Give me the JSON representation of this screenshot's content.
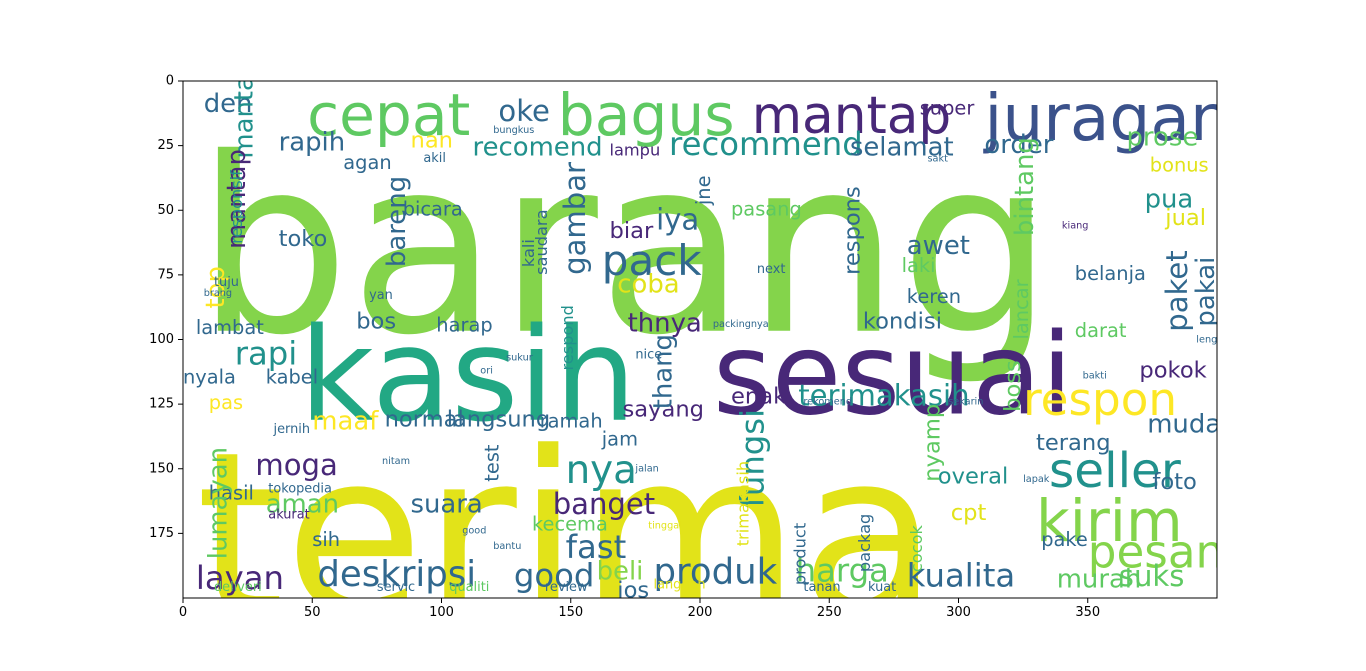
{
  "chart_data": {
    "type": "wordcloud",
    "title": "",
    "xlabel": "",
    "ylabel": "",
    "xlim": [
      0,
      400
    ],
    "ylim": [
      200,
      0
    ],
    "x_ticks": [
      "0",
      "50",
      "100",
      "150",
      "200",
      "250",
      "300",
      "350"
    ],
    "y_ticks": [
      "0",
      "25",
      "50",
      "75",
      "100",
      "125",
      "150",
      "175"
    ],
    "words": [
      {
        "text": "barang",
        "x": 5,
        "y": 10,
        "h": 75,
        "color": "#84d44b",
        "rot": 0
      },
      {
        "text": "terima",
        "x": 5,
        "y": 125,
        "h": 70,
        "color": "#e2e319",
        "rot": 0
      },
      {
        "text": "kasih",
        "x": 45,
        "y": 85,
        "h": 40,
        "color": "#22a884",
        "rot": 0
      },
      {
        "text": "sesuai",
        "x": 205,
        "y": 88,
        "h": 35,
        "color": "#482878",
        "rot": 0
      },
      {
        "text": "cepat",
        "x": 48,
        "y": 0,
        "h": 18,
        "color": "#5ec962",
        "rot": 0
      },
      {
        "text": "bagus",
        "x": 145,
        "y": 0,
        "h": 18,
        "color": "#5ec962",
        "rot": 0
      },
      {
        "text": "juragan",
        "x": 310,
        "y": 0,
        "h": 20,
        "color": "#3b528b",
        "rot": 0
      },
      {
        "text": "mantap",
        "x": 220,
        "y": 2,
        "h": 16,
        "color": "#482878",
        "rot": 0
      },
      {
        "text": "oke",
        "x": 122,
        "y": 5,
        "h": 9,
        "color": "#31688e",
        "rot": 0
      },
      {
        "text": "deh",
        "x": 8,
        "y": 3,
        "h": 8,
        "color": "#31688e",
        "rot": 0
      },
      {
        "text": "recommend",
        "x": 188,
        "y": 17,
        "h": 10,
        "color": "#21918c",
        "rot": 0
      },
      {
        "text": "recomend",
        "x": 112,
        "y": 20,
        "h": 8,
        "color": "#21918c",
        "rot": 0
      },
      {
        "text": "rapih",
        "x": 37,
        "y": 18,
        "h": 8,
        "color": "#31688e",
        "rot": 0
      },
      {
        "text": "nan",
        "x": 88,
        "y": 18,
        "h": 7,
        "color": "#fde725",
        "rot": 0
      },
      {
        "text": "selamat",
        "x": 258,
        "y": 20,
        "h": 8,
        "color": "#31688e",
        "rot": 0
      },
      {
        "text": "order",
        "x": 310,
        "y": 19,
        "h": 8,
        "color": "#31688e",
        "rot": 0
      },
      {
        "text": "prose",
        "x": 365,
        "y": 16,
        "h": 8,
        "color": "#5ec962",
        "rot": 0
      },
      {
        "text": "pack",
        "x": 162,
        "y": 60,
        "h": 13,
        "color": "#31688e",
        "rot": 0
      },
      {
        "text": "iya",
        "x": 183,
        "y": 47,
        "h": 9,
        "color": "#31688e",
        "rot": 0
      },
      {
        "text": "coba",
        "x": 168,
        "y": 73,
        "h": 8,
        "color": "#e2e319",
        "rot": 0
      },
      {
        "text": "biar",
        "x": 165,
        "y": 53,
        "h": 7,
        "color": "#482878",
        "rot": 0
      },
      {
        "text": "awet",
        "x": 280,
        "y": 58,
        "h": 8,
        "color": "#31688e",
        "rot": 0
      },
      {
        "text": "toko",
        "x": 37,
        "y": 56,
        "h": 7,
        "color": "#31688e",
        "rot": 0
      },
      {
        "text": "thnya",
        "x": 172,
        "y": 88,
        "h": 8,
        "color": "#482878",
        "rot": 0
      },
      {
        "text": "rapi",
        "x": 20,
        "y": 98,
        "h": 10,
        "color": "#21918c",
        "rot": 0
      },
      {
        "text": "bos",
        "x": 67,
        "y": 88,
        "h": 7,
        "color": "#31688e",
        "rot": 0
      },
      {
        "text": "terimakasih",
        "x": 238,
        "y": 115,
        "h": 9,
        "color": "#21918c",
        "rot": 0
      },
      {
        "text": "respon",
        "x": 325,
        "y": 113,
        "h": 14,
        "color": "#fde725",
        "rot": 0
      },
      {
        "text": "pokok",
        "x": 370,
        "y": 107,
        "h": 7,
        "color": "#482878",
        "rot": 0
      },
      {
        "text": "seller",
        "x": 335,
        "y": 140,
        "h": 15,
        "color": "#21918c",
        "rot": 0
      },
      {
        "text": "kirim",
        "x": 330,
        "y": 157,
        "h": 18,
        "color": "#84d44b",
        "rot": 0
      },
      {
        "text": "pesan",
        "x": 350,
        "y": 172,
        "h": 14,
        "color": "#84d44b",
        "rot": 0
      },
      {
        "text": "mudah",
        "x": 373,
        "y": 127,
        "h": 8,
        "color": "#31688e",
        "rot": 0
      },
      {
        "text": "moga",
        "x": 28,
        "y": 142,
        "h": 9,
        "color": "#482878",
        "rot": 0
      },
      {
        "text": "nya",
        "x": 148,
        "y": 142,
        "h": 12,
        "color": "#21918c",
        "rot": 0
      },
      {
        "text": "banget",
        "x": 143,
        "y": 157,
        "h": 9,
        "color": "#482878",
        "rot": 0
      },
      {
        "text": "suara",
        "x": 88,
        "y": 158,
        "h": 8,
        "color": "#31688e",
        "rot": 0
      },
      {
        "text": "aman",
        "x": 32,
        "y": 158,
        "h": 8,
        "color": "#5ec962",
        "rot": 0
      },
      {
        "text": "fast",
        "x": 148,
        "y": 173,
        "h": 10,
        "color": "#31688e",
        "rot": 0
      },
      {
        "text": "layan",
        "x": 5,
        "y": 185,
        "h": 10,
        "color": "#482878",
        "rot": 0
      },
      {
        "text": "deskripsi",
        "x": 52,
        "y": 183,
        "h": 11,
        "color": "#31688e",
        "rot": 0
      },
      {
        "text": "good",
        "x": 128,
        "y": 184,
        "h": 10,
        "color": "#31688e",
        "rot": 0
      },
      {
        "text": "produk",
        "x": 182,
        "y": 182,
        "h": 11,
        "color": "#31688e",
        "rot": 0
      },
      {
        "text": "harga",
        "x": 237,
        "y": 182,
        "h": 10,
        "color": "#5ec962",
        "rot": 0
      },
      {
        "text": "kualita",
        "x": 280,
        "y": 184,
        "h": 10,
        "color": "#31688e",
        "rot": 0
      },
      {
        "text": "suks",
        "x": 362,
        "y": 185,
        "h": 9,
        "color": "#5ec962",
        "rot": 0
      },
      {
        "text": "murah",
        "x": 338,
        "y": 187,
        "h": 8,
        "color": "#5ec962",
        "rot": 0
      },
      {
        "text": "beli",
        "x": 160,
        "y": 184,
        "h": 8,
        "color": "#84d44b",
        "rot": 0
      },
      {
        "text": "jos",
        "x": 168,
        "y": 192,
        "h": 7,
        "color": "#31688e",
        "rot": 0
      },
      {
        "text": "maaf",
        "x": 50,
        "y": 126,
        "h": 8,
        "color": "#fde725",
        "rot": 0
      },
      {
        "text": "normal",
        "x": 78,
        "y": 126,
        "h": 7,
        "color": "#31688e",
        "rot": 0
      },
      {
        "text": "langsung",
        "x": 102,
        "y": 126,
        "h": 7,
        "color": "#31688e",
        "rot": 0
      },
      {
        "text": "ramah",
        "x": 138,
        "y": 127,
        "h": 6,
        "color": "#31688e",
        "rot": 0
      },
      {
        "text": "sayang",
        "x": 170,
        "y": 122,
        "h": 7,
        "color": "#482878",
        "rot": 0
      },
      {
        "text": "jam",
        "x": 162,
        "y": 134,
        "h": 6,
        "color": "#31688e",
        "rot": 0
      },
      {
        "text": "enak",
        "x": 212,
        "y": 117,
        "h": 7,
        "color": "#482878",
        "rot": 0
      },
      {
        "text": "overal",
        "x": 292,
        "y": 148,
        "h": 7,
        "color": "#21918c",
        "rot": 0
      },
      {
        "text": "cpt",
        "x": 297,
        "y": 162,
        "h": 7,
        "color": "#e2e319",
        "rot": 0
      },
      {
        "text": "terang",
        "x": 330,
        "y": 135,
        "h": 7,
        "color": "#31688e",
        "rot": 0
      },
      {
        "text": "foto",
        "x": 375,
        "y": 150,
        "h": 7,
        "color": "#31688e",
        "rot": 0
      },
      {
        "text": "hasil",
        "x": 10,
        "y": 155,
        "h": 6,
        "color": "#31688e",
        "rot": 0
      },
      {
        "text": "sih",
        "x": 50,
        "y": 173,
        "h": 6,
        "color": "#31688e",
        "rot": 0
      },
      {
        "text": "kecema",
        "x": 135,
        "y": 167,
        "h": 6,
        "color": "#5ec962",
        "rot": 0
      },
      {
        "text": "pake",
        "x": 332,
        "y": 173,
        "h": 6,
        "color": "#31688e",
        "rot": 0
      },
      {
        "text": "kondisi",
        "x": 263,
        "y": 88,
        "h": 7,
        "color": "#31688e",
        "rot": 0
      },
      {
        "text": "keren",
        "x": 280,
        "y": 79,
        "h": 6,
        "color": "#31688e",
        "rot": 0
      },
      {
        "text": "laki",
        "x": 278,
        "y": 67,
        "h": 6,
        "color": "#5ec962",
        "rot": 0
      },
      {
        "text": "pasang",
        "x": 212,
        "y": 45,
        "h": 6,
        "color": "#5ec962",
        "rot": 0
      },
      {
        "text": "jual",
        "x": 380,
        "y": 48,
        "h": 7,
        "color": "#e2e319",
        "rot": 0
      },
      {
        "text": "pua",
        "x": 372,
        "y": 40,
        "h": 8,
        "color": "#21918c",
        "rot": 0
      },
      {
        "text": "bonus",
        "x": 374,
        "y": 28,
        "h": 6,
        "color": "#e2e319",
        "rot": 0
      },
      {
        "text": "belanja",
        "x": 345,
        "y": 70,
        "h": 6,
        "color": "#31688e",
        "rot": 0
      },
      {
        "text": "darat",
        "x": 345,
        "y": 92,
        "h": 6,
        "color": "#5ec962",
        "rot": 0
      },
      {
        "text": "bicara",
        "x": 85,
        "y": 45,
        "h": 6,
        "color": "#31688e",
        "rot": 0
      },
      {
        "text": "agan",
        "x": 62,
        "y": 27,
        "h": 6,
        "color": "#31688e",
        "rot": 0
      },
      {
        "text": "lampu",
        "x": 165,
        "y": 23,
        "h": 5,
        "color": "#482878",
        "rot": 0
      },
      {
        "text": "super",
        "x": 285,
        "y": 6,
        "h": 6,
        "color": "#482878",
        "rot": 0
      },
      {
        "text": "lambat",
        "x": 5,
        "y": 91,
        "h": 6,
        "color": "#31688e",
        "rot": 0
      },
      {
        "text": "harap",
        "x": 98,
        "y": 90,
        "h": 6,
        "color": "#31688e",
        "rot": 0
      },
      {
        "text": "nyala",
        "x": 0,
        "y": 110,
        "h": 6,
        "color": "#31688e",
        "rot": 0
      },
      {
        "text": "kabel",
        "x": 32,
        "y": 110,
        "h": 6,
        "color": "#31688e",
        "rot": 0
      },
      {
        "text": "pas",
        "x": 10,
        "y": 120,
        "h": 6,
        "color": "#fde725",
        "rot": 0
      },
      {
        "text": "mantab",
        "x": 18,
        "y": 30,
        "h": 8,
        "color": "#21918c",
        "rot": -90
      },
      {
        "text": "mantap",
        "x": 15,
        "y": 65,
        "h": 8,
        "color": "#482878",
        "rot": -90
      },
      {
        "text": "top",
        "x": 7,
        "y": 88,
        "h": 8,
        "color": "#fde725",
        "rot": -90
      },
      {
        "text": "lumayan",
        "x": 8,
        "y": 185,
        "h": 8,
        "color": "#5ec962",
        "rot": -90
      },
      {
        "text": "bareng",
        "x": 77,
        "y": 72,
        "h": 8,
        "color": "#31688e",
        "rot": -90
      },
      {
        "text": "gambar",
        "x": 145,
        "y": 75,
        "h": 9,
        "color": "#31688e",
        "rot": -90
      },
      {
        "text": "fungsi",
        "x": 213,
        "y": 165,
        "h": 10,
        "color": "#21918c",
        "rot": -90
      },
      {
        "text": "thang",
        "x": 180,
        "y": 127,
        "h": 8,
        "color": "#31688e",
        "rot": -90
      },
      {
        "text": "paket",
        "x": 378,
        "y": 97,
        "h": 9,
        "color": "#31688e",
        "rot": -90
      },
      {
        "text": "bintang",
        "x": 320,
        "y": 60,
        "h": 8,
        "color": "#5ec962",
        "rot": -90
      },
      {
        "text": "respons",
        "x": 254,
        "y": 75,
        "h": 7,
        "color": "#31688e",
        "rot": -90
      },
      {
        "text": "pakai",
        "x": 390,
        "y": 95,
        "h": 8,
        "color": "#31688e",
        "rot": -90
      },
      {
        "text": "nyamp",
        "x": 285,
        "y": 155,
        "h": 7,
        "color": "#5ec962",
        "rot": -90
      },
      {
        "text": "boss",
        "x": 316,
        "y": 128,
        "h": 7,
        "color": "#5ec962",
        "rot": -90
      },
      {
        "text": "responsif",
        "x": 17,
        "y": 63,
        "h": 5,
        "color": "#21918c",
        "rot": -90
      },
      {
        "text": "respond",
        "x": 145,
        "y": 112,
        "h": 5,
        "color": "#21918c",
        "rot": -90
      },
      {
        "text": "jne",
        "x": 197,
        "y": 48,
        "h": 6,
        "color": "#31688e",
        "rot": -90
      },
      {
        "text": "test",
        "x": 115,
        "y": 155,
        "h": 6,
        "color": "#31688e",
        "rot": -90
      },
      {
        "text": "trimakasih",
        "x": 213,
        "y": 180,
        "h": 5,
        "color": "#e2e319",
        "rot": -90
      },
      {
        "text": "product",
        "x": 235,
        "y": 195,
        "h": 5,
        "color": "#31688e",
        "rot": -90
      },
      {
        "text": "packag",
        "x": 260,
        "y": 190,
        "h": 5,
        "color": "#31688e",
        "rot": -90
      },
      {
        "text": "cocok",
        "x": 280,
        "y": 190,
        "h": 5,
        "color": "#5ec962",
        "rot": -90
      },
      {
        "text": "lancar",
        "x": 320,
        "y": 100,
        "h": 6,
        "color": "#5ec962",
        "rot": -90
      },
      {
        "text": "saudara",
        "x": 135,
        "y": 75,
        "h": 5,
        "color": "#31688e",
        "rot": -90
      },
      {
        "text": "kali",
        "x": 130,
        "y": 72,
        "h": 5,
        "color": "#31688e",
        "rot": -90
      },
      {
        "text": "tuju",
        "x": 12,
        "y": 75,
        "h": 4,
        "color": "#31688e",
        "rot": 0
      },
      {
        "text": "brang",
        "x": 8,
        "y": 80,
        "h": 3,
        "color": "#31688e",
        "rot": 0
      },
      {
        "text": "yan",
        "x": 72,
        "y": 80,
        "h": 4,
        "color": "#31688e",
        "rot": 0
      },
      {
        "text": "next",
        "x": 222,
        "y": 70,
        "h": 4,
        "color": "#31688e",
        "rot": 0
      },
      {
        "text": "nice",
        "x": 175,
        "y": 103,
        "h": 4,
        "color": "#31688e",
        "rot": 0
      },
      {
        "text": "packingnya",
        "x": 205,
        "y": 92,
        "h": 3,
        "color": "#31688e",
        "rot": 0
      },
      {
        "text": "kiang",
        "x": 340,
        "y": 54,
        "h": 3,
        "color": "#482878",
        "rot": 0
      },
      {
        "text": "jernih",
        "x": 35,
        "y": 132,
        "h": 4,
        "color": "#31688e",
        "rot": 0
      },
      {
        "text": "akil",
        "x": 93,
        "y": 27,
        "h": 4,
        "color": "#31688e",
        "rot": 0
      },
      {
        "text": "bungkus",
        "x": 120,
        "y": 17,
        "h": 3,
        "color": "#31688e",
        "rot": 0
      },
      {
        "text": "tokopedia",
        "x": 33,
        "y": 155,
        "h": 4,
        "color": "#31688e",
        "rot": 0
      },
      {
        "text": "akurat",
        "x": 33,
        "y": 165,
        "h": 4,
        "color": "#482878",
        "rot": 0
      },
      {
        "text": "deliveri",
        "x": 12,
        "y": 193,
        "h": 4,
        "color": "#5ec962",
        "rot": 0
      },
      {
        "text": "servic",
        "x": 75,
        "y": 193,
        "h": 4,
        "color": "#31688e",
        "rot": 0
      },
      {
        "text": "qualiti",
        "x": 103,
        "y": 193,
        "h": 4,
        "color": "#5ec962",
        "rot": 0
      },
      {
        "text": "review",
        "x": 140,
        "y": 193,
        "h": 4,
        "color": "#31688e",
        "rot": 0
      },
      {
        "text": "langgan",
        "x": 182,
        "y": 192,
        "h": 4,
        "color": "#e2e319",
        "rot": 0
      },
      {
        "text": "tanan",
        "x": 240,
        "y": 193,
        "h": 4,
        "color": "#31688e",
        "rot": 0
      },
      {
        "text": "kuat",
        "x": 265,
        "y": 193,
        "h": 4,
        "color": "#31688e",
        "rot": 0
      },
      {
        "text": "sukur",
        "x": 125,
        "y": 105,
        "h": 3,
        "color": "#31688e",
        "rot": 0
      },
      {
        "text": "ori",
        "x": 115,
        "y": 110,
        "h": 3,
        "color": "#31688e",
        "rot": 0
      },
      {
        "text": "nitam",
        "x": 77,
        "y": 145,
        "h": 3,
        "color": "#31688e",
        "rot": 0
      },
      {
        "text": "jalan",
        "x": 175,
        "y": 148,
        "h": 3,
        "color": "#31688e",
        "rot": 0
      },
      {
        "text": "tinggal",
        "x": 180,
        "y": 170,
        "h": 3,
        "color": "#e2e319",
        "rot": 0
      },
      {
        "text": "bantu",
        "x": 120,
        "y": 178,
        "h": 3,
        "color": "#31688e",
        "rot": 0
      },
      {
        "text": "good",
        "x": 108,
        "y": 172,
        "h": 3,
        "color": "#31688e",
        "rot": 0
      },
      {
        "text": "sakt",
        "x": 288,
        "y": 28,
        "h": 3,
        "color": "#31688e",
        "rot": 0
      },
      {
        "text": "lengkap",
        "x": 392,
        "y": 98,
        "h": 3,
        "color": "#31688e",
        "rot": 0
      },
      {
        "text": "lapak",
        "x": 325,
        "y": 152,
        "h": 3,
        "color": "#31688e",
        "rot": 0
      },
      {
        "text": "bakti",
        "x": 348,
        "y": 112,
        "h": 3,
        "color": "#31688e",
        "rot": 0
      },
      {
        "text": "rekomend",
        "x": 240,
        "y": 122,
        "h": 3,
        "color": "#31688e",
        "rot": 0
      },
      {
        "text": "sekarin",
        "x": 296,
        "y": 122,
        "h": 3,
        "color": "#31688e",
        "rot": 0
      }
    ]
  }
}
